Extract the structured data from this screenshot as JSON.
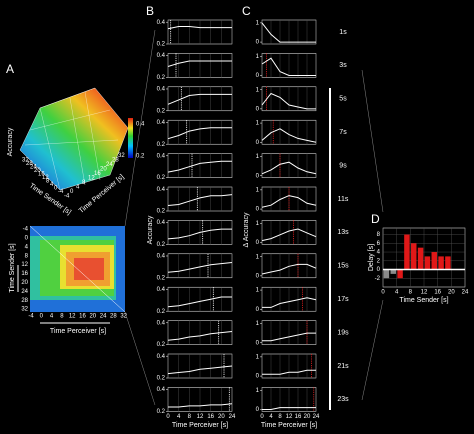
{
  "panel_a": {
    "label": "A",
    "surface": {
      "zlabel": "Accuracy",
      "ylabel": "Time Sender [s]",
      "xlabel": "Time Perceiver [s]",
      "yticks": [
        "32",
        "28",
        "24",
        "20",
        "16",
        "12",
        "8",
        "4",
        "0",
        "-4"
      ],
      "xticks": [
        "-4",
        "0",
        "4",
        "8",
        "12",
        "16",
        "20",
        "24",
        "28",
        "32"
      ],
      "colorbar_ticks": [
        "0.4",
        "0.2"
      ]
    },
    "heatmap": {
      "ylabel": "Time Sender [s]",
      "xlabel": "Time Perceiver [s]",
      "yticks": [
        "-4",
        "0",
        "4",
        "8",
        "12",
        "16",
        "20",
        "24",
        "28",
        "32"
      ],
      "xticks": [
        "-4",
        "0",
        "4",
        "8",
        "12",
        "16",
        "20",
        "24",
        "28",
        "32"
      ]
    }
  },
  "chart_data": [
    {
      "type": "line",
      "label": "B",
      "ylabel": "Accuracy",
      "xlabel": "Time Perceiver [s]",
      "x": [
        0,
        4,
        8,
        12,
        16,
        20,
        24
      ],
      "xlim": [
        0,
        24
      ],
      "xticks": [
        0,
        4,
        8,
        12,
        16,
        20,
        24
      ],
      "ylim": [
        0.2,
        0.42
      ],
      "yticks": [
        0.2,
        0.4
      ],
      "grid": true,
      "markers": [
        1,
        3,
        5,
        7,
        9,
        11,
        13,
        15,
        17,
        19,
        21,
        23
      ],
      "marker_color": "#ffffff",
      "series": [
        {
          "color": "#ffffff",
          "values": [
            0.34,
            0.36,
            0.36,
            0.35,
            0.35,
            0.35,
            0.35
          ]
        },
        {
          "color": "#ffffff",
          "values": [
            0.3,
            0.33,
            0.35,
            0.35,
            0.35,
            0.35,
            0.35
          ]
        },
        {
          "color": "#ffffff",
          "values": [
            0.26,
            0.3,
            0.34,
            0.35,
            0.35,
            0.35,
            0.35
          ]
        },
        {
          "color": "#ffffff",
          "values": [
            0.25,
            0.28,
            0.32,
            0.34,
            0.35,
            0.35,
            0.35
          ]
        },
        {
          "color": "#ffffff",
          "values": [
            0.25,
            0.27,
            0.3,
            0.33,
            0.34,
            0.35,
            0.35
          ]
        },
        {
          "color": "#ffffff",
          "values": [
            0.25,
            0.26,
            0.29,
            0.32,
            0.34,
            0.34,
            0.35
          ]
        },
        {
          "color": "#ffffff",
          "values": [
            0.25,
            0.26,
            0.28,
            0.31,
            0.33,
            0.34,
            0.34
          ]
        },
        {
          "color": "#ffffff",
          "values": [
            0.25,
            0.26,
            0.28,
            0.3,
            0.32,
            0.33,
            0.34
          ]
        },
        {
          "color": "#ffffff",
          "values": [
            0.24,
            0.25,
            0.27,
            0.29,
            0.31,
            0.33,
            0.33
          ]
        },
        {
          "color": "#ffffff",
          "values": [
            0.24,
            0.25,
            0.27,
            0.28,
            0.3,
            0.31,
            0.32
          ]
        },
        {
          "color": "#ffffff",
          "values": [
            0.24,
            0.25,
            0.26,
            0.28,
            0.29,
            0.3,
            0.31
          ]
        },
        {
          "color": "#ffffff",
          "values": [
            0.24,
            0.24,
            0.25,
            0.25,
            0.26,
            0.26,
            0.27
          ]
        }
      ]
    },
    {
      "type": "line",
      "label": "C",
      "ylabel": "Δ Accuracy",
      "xlabel": "Time Perceiver [s]",
      "x": [
        0,
        4,
        8,
        12,
        16,
        20,
        24
      ],
      "xlim": [
        0,
        24
      ],
      "xticks": [
        0,
        4,
        8,
        12,
        16,
        20,
        24
      ],
      "ylim": [
        -0.1,
        1.15
      ],
      "yticks": [
        0,
        1
      ],
      "grid": true,
      "markers": [
        null,
        2,
        2,
        5,
        8,
        12,
        14,
        16,
        18,
        20,
        22,
        23
      ],
      "marker_color": "#e02020",
      "series": [
        {
          "name": "1s",
          "color": "#ffffff",
          "values": [
            1,
            0.4,
            0,
            0,
            0,
            0,
            0
          ]
        },
        {
          "name": "3s",
          "color": "#ffffff",
          "values": [
            0.6,
            0.9,
            0.2,
            0,
            0,
            0,
            0
          ]
        },
        {
          "name": "5s",
          "color": "#ffffff",
          "values": [
            0.2,
            0.8,
            0.6,
            0.2,
            0.1,
            0,
            0
          ]
        },
        {
          "name": "7s",
          "color": "#ffffff",
          "values": [
            0.1,
            0.5,
            0.7,
            0.4,
            0.2,
            0.1,
            0
          ]
        },
        {
          "name": "9s",
          "color": "#ffffff",
          "values": [
            0.1,
            0.3,
            0.6,
            0.7,
            0.4,
            0.2,
            0.1
          ]
        },
        {
          "name": "11s",
          "color": "#ffffff",
          "values": [
            0.1,
            0.2,
            0.5,
            0.7,
            0.6,
            0.3,
            0.2
          ]
        },
        {
          "name": "13s",
          "color": "#ffffff",
          "values": [
            0.1,
            0.2,
            0.4,
            0.6,
            0.7,
            0.5,
            0.3
          ]
        },
        {
          "name": "15s",
          "color": "#ffffff",
          "values": [
            0.1,
            0.2,
            0.3,
            0.5,
            0.6,
            0.6,
            0.4
          ]
        },
        {
          "name": "17s",
          "color": "#ffffff",
          "values": [
            0.1,
            0.1,
            0.3,
            0.4,
            0.5,
            0.6,
            0.5
          ]
        },
        {
          "name": "19s",
          "color": "#ffffff",
          "values": [
            0.1,
            0.1,
            0.2,
            0.3,
            0.4,
            0.5,
            0.5
          ]
        },
        {
          "name": "21s",
          "color": "#ffffff",
          "values": [
            0.1,
            0.1,
            0.1,
            0.2,
            0.2,
            0.3,
            0.3
          ]
        },
        {
          "name": "23s",
          "color": "#ffffff",
          "values": [
            0,
            0,
            0.1,
            0.1,
            0.1,
            0.1,
            0.1
          ]
        }
      ]
    },
    {
      "type": "bar",
      "label": "D",
      "ylabel": "Delay [s]",
      "xlabel": "Time Sender [s]",
      "xlim": [
        0,
        24
      ],
      "xticks": [
        0,
        4,
        8,
        12,
        16,
        20,
        24
      ],
      "ylim": [
        -4,
        9.5
      ],
      "yticks": [
        -2,
        0,
        2,
        4,
        6,
        8
      ],
      "grid": true,
      "series": [
        {
          "color": "#8a8a8a",
          "x": [
            1,
            3
          ],
          "values": [
            -2,
            -1
          ]
        },
        {
          "color": "#e01818",
          "x": [
            5,
            7,
            9,
            11,
            13,
            15,
            17,
            19
          ],
          "values": [
            -2,
            8,
            6,
            5,
            3,
            4,
            3,
            3
          ]
        }
      ]
    }
  ]
}
